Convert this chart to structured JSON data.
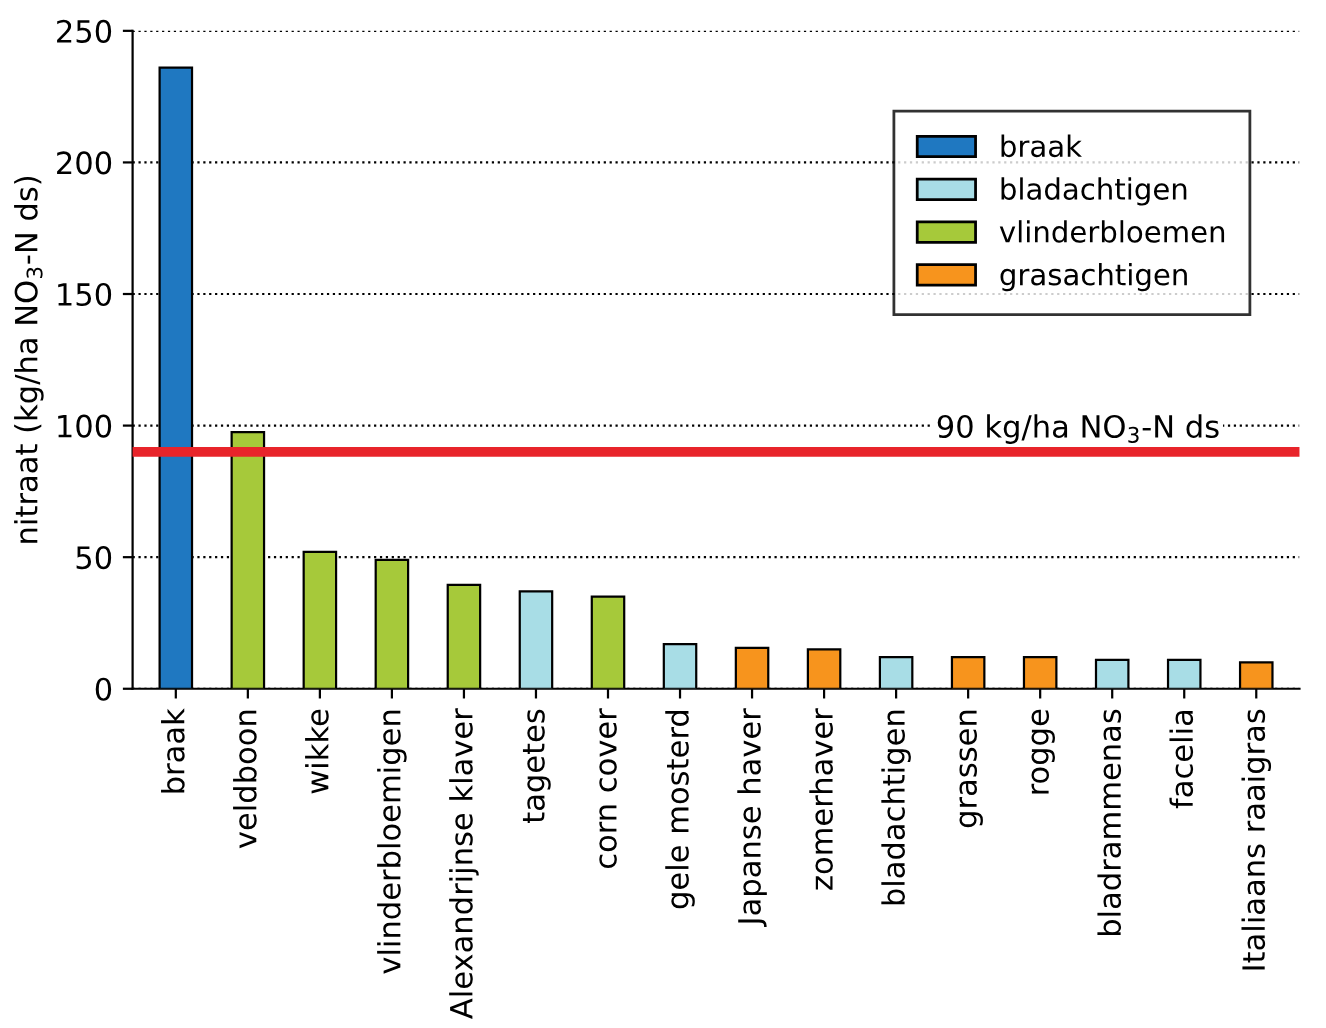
{
  "chart_data": {
    "type": "bar",
    "ylabel": "nitraat (kg/ha NO$_{3}$-N ds)",
    "categories": [
      "braak",
      "veldboon",
      "wikke",
      "vlinderbloemigen",
      "Alexandrijnse klaver",
      "tagetes",
      "corn cover",
      "gele mosterd",
      "Japanse haver",
      "zomerhaver",
      "bladachtigen",
      "grassen",
      "rogge",
      "bladrammenas",
      "facelia",
      "Italiaans raaigras"
    ],
    "stacked": true,
    "series": [
      {
        "name": "braak",
        "color": "#1f78c1",
        "values": [
          236,
          null,
          null,
          null,
          null,
          null,
          null,
          null,
          null,
          null,
          null,
          null,
          null,
          null,
          null,
          null
        ]
      },
      {
        "name": "bladachtigen",
        "color": "#a8dde6",
        "values": [
          null,
          null,
          null,
          null,
          null,
          37,
          null,
          17,
          null,
          null,
          12,
          null,
          null,
          11,
          11,
          null
        ]
      },
      {
        "name": "vlinderbloemen",
        "color": "#a6c93a",
        "values": [
          null,
          97.5,
          52,
          49,
          39.5,
          null,
          35,
          null,
          null,
          null,
          null,
          null,
          null,
          null,
          null,
          null
        ]
      },
      {
        "name": "grasachtigen",
        "color": "#f7941d",
        "values": [
          null,
          null,
          null,
          null,
          null,
          null,
          null,
          null,
          15.5,
          15,
          null,
          12,
          12,
          null,
          null,
          10
        ]
      }
    ],
    "ylim": [
      0,
      250
    ],
    "yticks": [
      0,
      50,
      100,
      150,
      200,
      250
    ],
    "grid": "y",
    "legend": "top right",
    "ref_lines": [
      {
        "axis": "y",
        "value": 90,
        "label": "90 kg/ha NO$_{3}$-N ds",
        "color": "#e8242a"
      }
    ]
  }
}
